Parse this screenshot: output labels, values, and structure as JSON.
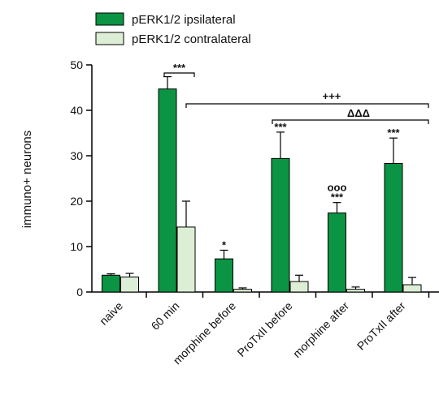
{
  "chart_data": {
    "type": "bar",
    "title": "",
    "xlabel": "",
    "ylabel": "immuno+ neurons",
    "ylim": [
      0,
      50
    ],
    "yticks": [
      0,
      10,
      20,
      30,
      40,
      50
    ],
    "grid": false,
    "legend_position": "top-left",
    "categories": [
      "naive",
      "60 min",
      "morphine before",
      "ProTxII before",
      "morphine after",
      "ProTxII after"
    ],
    "series": [
      {
        "name": "pERK1/2 ipsilateral",
        "color": "#0b9444",
        "values": [
          3.7,
          44.7,
          7.3,
          29.4,
          17.4,
          28.3
        ],
        "errors": [
          0.3,
          2.7,
          1.9,
          5.8,
          2.3,
          5.6
        ]
      },
      {
        "name": "pERK1/2 contralateral",
        "color": "#dcefd6",
        "values": [
          3.3,
          14.3,
          0.6,
          2.3,
          0.6,
          1.6
        ],
        "errors": [
          0.8,
          5.7,
          0.3,
          1.4,
          0.5,
          1.6
        ]
      }
    ],
    "annotations": {
      "stars_60min": "***",
      "stars_morphine_before": "*",
      "stars_protx_before": "***",
      "stars_morphine_after": "***",
      "circles_morphine_after": "ooo",
      "stars_protx_after": "***",
      "plus_bracket": "+++",
      "delta_bracket": "ΔΔΔ"
    }
  }
}
